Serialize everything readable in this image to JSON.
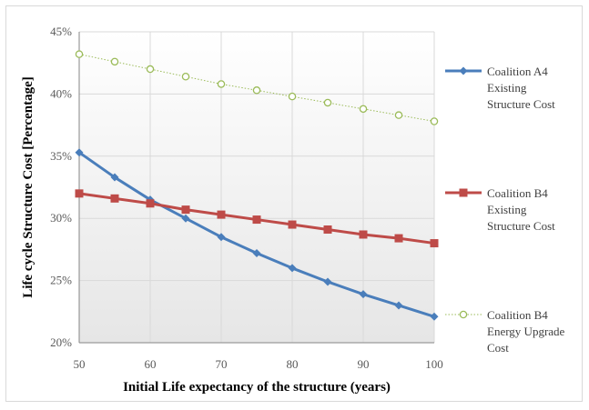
{
  "chart_data": {
    "type": "line",
    "title": "",
    "xlabel": "Initial Life expectancy of the structure (years)",
    "ylabel": "Life cycle Structure Cost  [Percentage]",
    "x": [
      50,
      55,
      60,
      65,
      70,
      75,
      80,
      85,
      90,
      95,
      100
    ],
    "xticks": [
      50,
      60,
      70,
      80,
      90,
      100
    ],
    "xlim": [
      50,
      100
    ],
    "ylim": [
      20,
      45
    ],
    "yticks": [
      20,
      25,
      30,
      35,
      40,
      45
    ],
    "y_tick_format": "percent",
    "grid": "horizontal",
    "legend_position": "right",
    "series": [
      {
        "name": "Coalition A4 Existing Structure Cost",
        "legend_lines": [
          "Coalition A4",
          "Existing",
          "Structure Cost"
        ],
        "color": "#4a7ebb",
        "marker": "diamond",
        "line_style": "solid",
        "values": [
          35.3,
          33.3,
          31.5,
          30.0,
          28.5,
          27.2,
          26.0,
          24.9,
          23.9,
          23.0,
          22.1
        ]
      },
      {
        "name": "Coalition B4 Existing Structure Cost",
        "legend_lines": [
          "Coalition B4",
          "Existing",
          "Structure Cost"
        ],
        "color": "#be4b48",
        "marker": "square",
        "line_style": "solid",
        "values": [
          32.0,
          31.6,
          31.2,
          30.7,
          30.3,
          29.9,
          29.5,
          29.1,
          28.7,
          28.4,
          28.0
        ]
      },
      {
        "name": "Coalition B4 Energy Upgrade Cost",
        "legend_lines": [
          "Coalition B4",
          "Energy Upgrade",
          "Cost"
        ],
        "color": "#9bbb59",
        "marker": "circle-open",
        "line_style": "dotted",
        "values": [
          43.2,
          42.6,
          42.0,
          41.4,
          40.8,
          40.3,
          39.8,
          39.3,
          38.8,
          38.3,
          37.8
        ]
      }
    ]
  }
}
